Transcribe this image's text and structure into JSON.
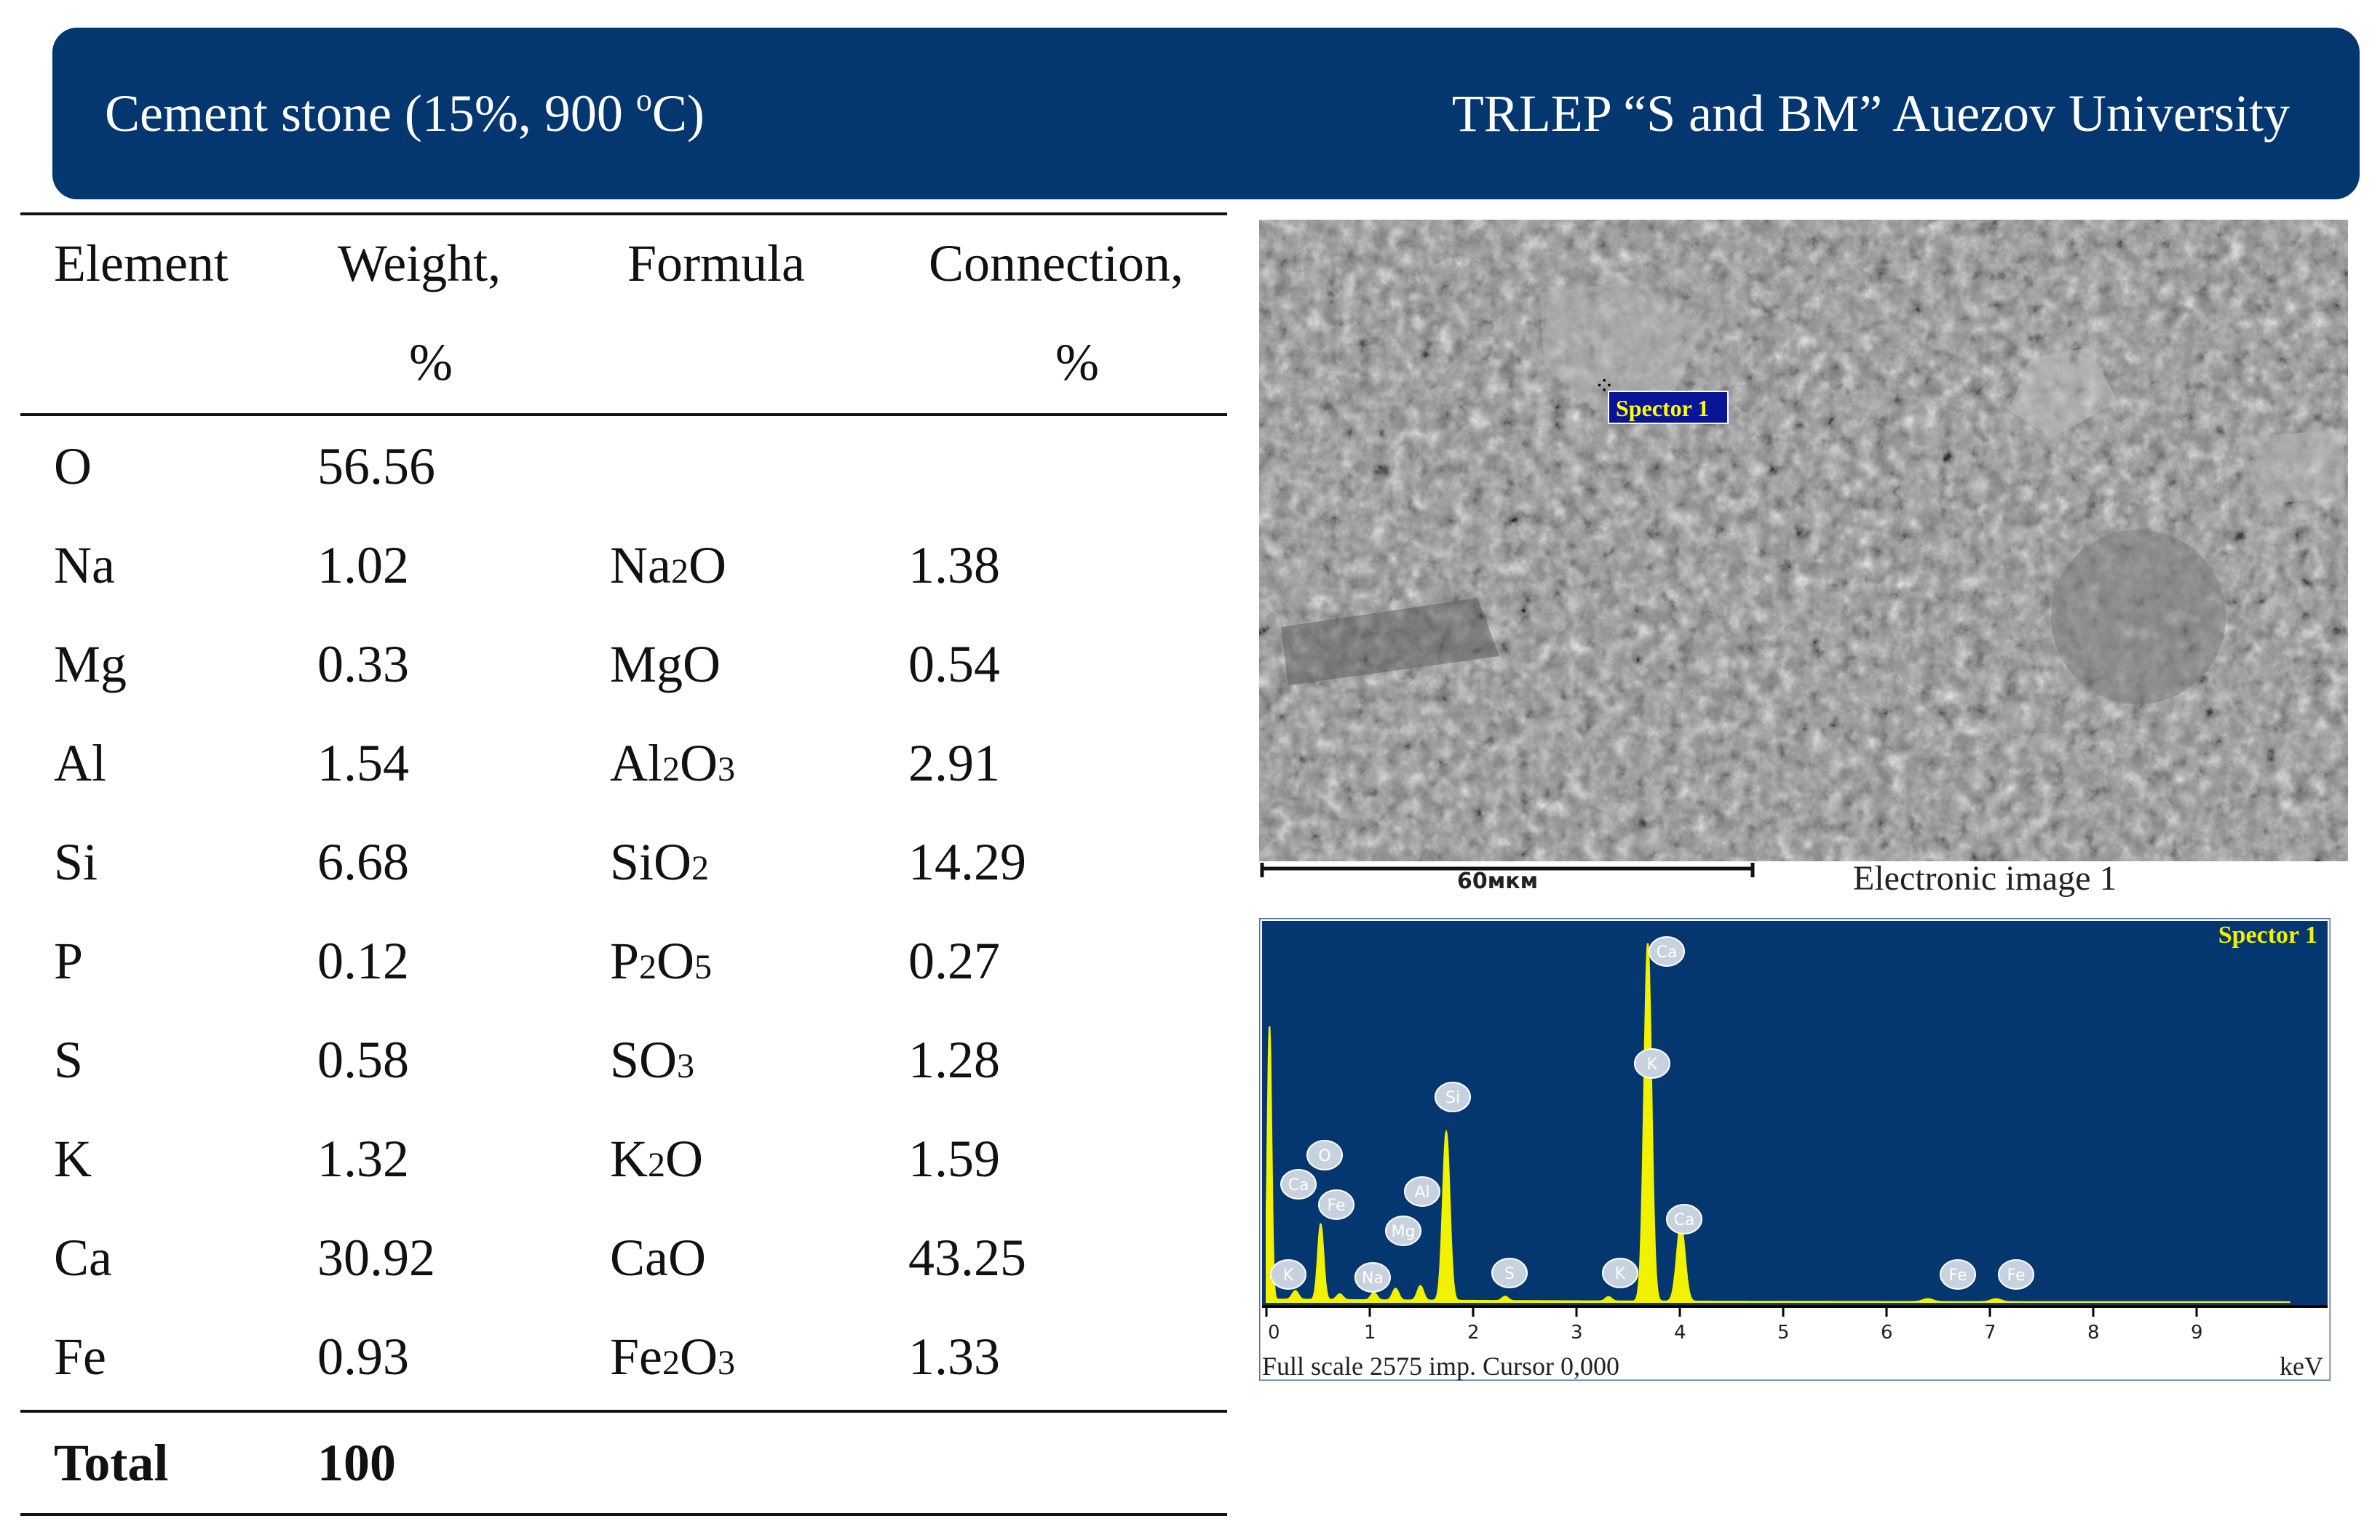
{
  "header": {
    "title_prefix": "Cement stone (15%, 900 ",
    "title_sup": "o",
    "title_suffix": "C)",
    "affiliation": "TRLEP “S and BM” Auezov University"
  },
  "table": {
    "headers": {
      "element": "Element",
      "weight_line1": "Weight,",
      "weight_line2": "%",
      "formula": "Formula",
      "connection_line1": "Connection,",
      "connection_line2": "%"
    },
    "rows": [
      {
        "element": "O",
        "weight": "56.56",
        "formula": [],
        "connection": ""
      },
      {
        "element": "Na",
        "weight": "1.02",
        "formula": [
          [
            "Na",
            ""
          ],
          [
            "2",
            "sub"
          ],
          [
            "O",
            ""
          ]
        ],
        "connection": "1.38"
      },
      {
        "element": "Mg",
        "weight": "0.33",
        "formula": [
          [
            "MgO",
            ""
          ]
        ],
        "connection": "0.54"
      },
      {
        "element": "Al",
        "weight": "1.54",
        "formula": [
          [
            "Al",
            ""
          ],
          [
            "2",
            "sub"
          ],
          [
            "O",
            ""
          ],
          [
            "3",
            "sub"
          ]
        ],
        "connection": "2.91"
      },
      {
        "element": "Si",
        "weight": "6.68",
        "formula": [
          [
            "SiO",
            ""
          ],
          [
            "2",
            "sub"
          ]
        ],
        "connection": "14.29"
      },
      {
        "element": "P",
        "weight": "0.12",
        "formula": [
          [
            "P",
            ""
          ],
          [
            "2",
            "sub"
          ],
          [
            "O",
            ""
          ],
          [
            "5",
            "sub"
          ]
        ],
        "connection": "0.27"
      },
      {
        "element": "S",
        "weight": "0.58",
        "formula": [
          [
            "SO",
            ""
          ],
          [
            "3",
            "sub"
          ]
        ],
        "connection": "1.28"
      },
      {
        "element": "K",
        "weight": "1.32",
        "formula": [
          [
            "K",
            ""
          ],
          [
            "2",
            "sub"
          ],
          [
            "O",
            ""
          ]
        ],
        "connection": "1.59"
      },
      {
        "element": "Ca",
        "weight": "30.92",
        "formula": [
          [
            "CaO",
            ""
          ]
        ],
        "connection": "43.25"
      },
      {
        "element": "Fe",
        "weight": "0.93",
        "formula": [
          [
            "Fe",
            ""
          ],
          [
            "2",
            "sub"
          ],
          [
            "O",
            ""
          ],
          [
            "3",
            "sub"
          ]
        ],
        "connection": "1.33"
      }
    ],
    "total": {
      "label": "Total",
      "weight": "100"
    }
  },
  "sem_image": {
    "label": "Spector 1",
    "scale_label": "60мкм",
    "caption": "Electronic image 1",
    "colors": {
      "label_bg": "#0a1496",
      "label_text": "#ffff00"
    }
  },
  "spectrum": {
    "title": "Spector 1",
    "footer": "Full scale 2575 imp. Cursor 0,000",
    "unit": "keV",
    "ticks": [
      "0",
      "1",
      "2",
      "3",
      "4",
      "5",
      "6",
      "7",
      "8",
      "9"
    ],
    "colors": {
      "background": "#043670",
      "peaks": "#f2f200",
      "title": "#f2f200"
    },
    "peak_labels": [
      "K",
      "Ca",
      "O",
      "Fe",
      "Na",
      "Mg",
      "Al",
      "Si",
      "S",
      "K",
      "K",
      "Ca",
      "Ca",
      "Fe",
      "Fe"
    ]
  }
}
